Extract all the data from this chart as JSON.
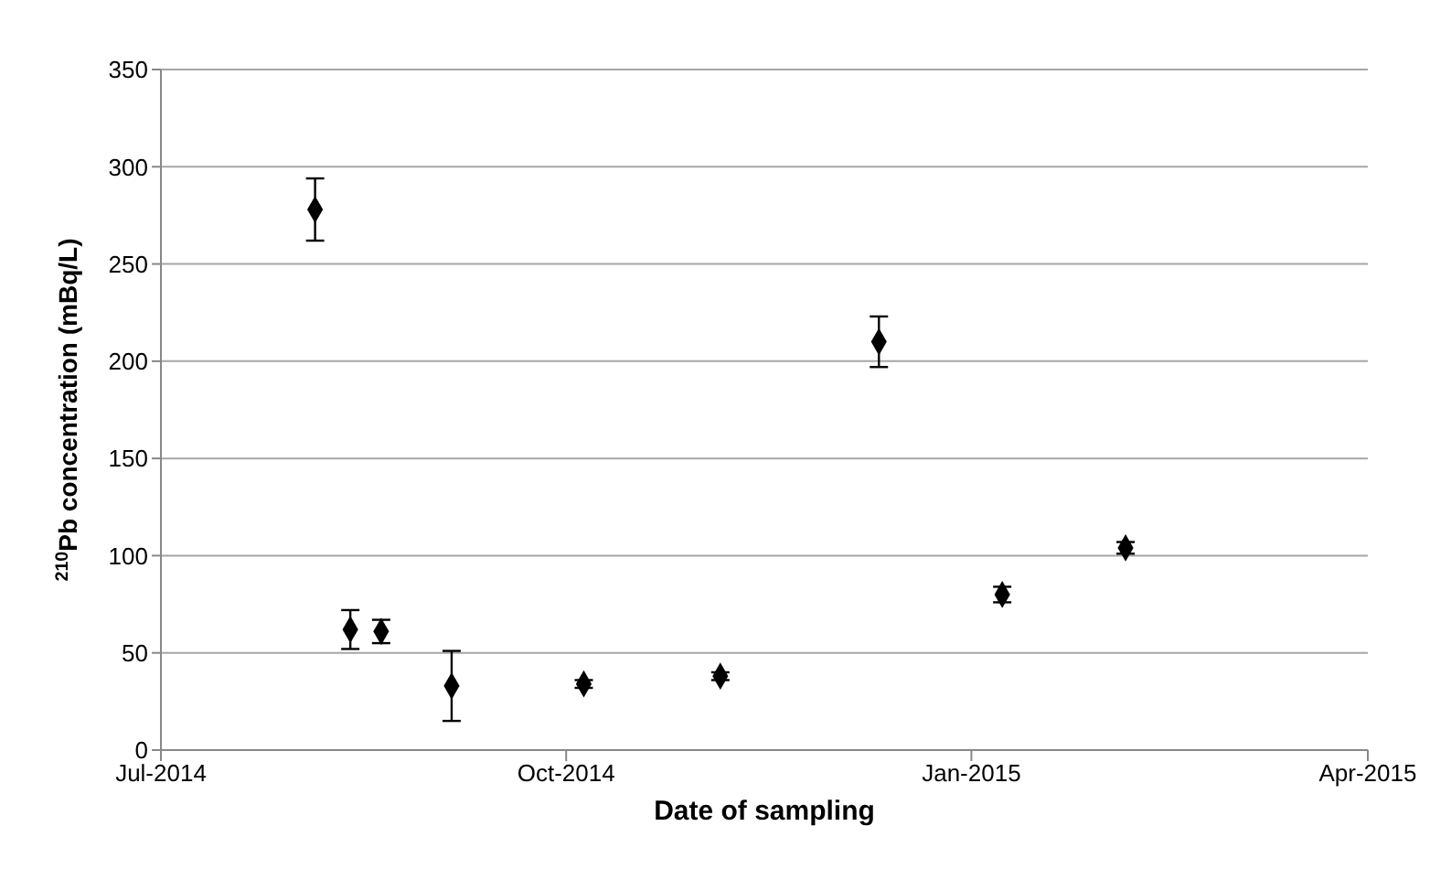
{
  "chart_data": {
    "type": "scatter",
    "xlabel": "Date of sampling",
    "ylabel": "$^{210}$Pb concentration (mBq/L)",
    "x": [
      "2014-08-05",
      "2014-08-13",
      "2014-08-20",
      "2014-09-05",
      "2014-10-05",
      "2014-11-05",
      "2014-12-11",
      "2015-01-08",
      "2015-02-05"
    ],
    "series": [
      {
        "color": "#000000",
        "values": [
          278,
          62,
          61,
          33,
          34,
          38,
          210,
          80,
          104
        ],
        "errors": [
          16,
          10,
          6,
          18,
          2,
          2,
          13,
          4,
          3
        ]
      }
    ],
    "xlim": [
      "2014-07-01",
      "2015-04-01"
    ],
    "xticks": [
      {
        "value": "2014-07-01",
        "label": "Jul-2014"
      },
      {
        "value": "2014-10-01",
        "label": "Oct-2014"
      },
      {
        "value": "2015-01-01",
        "label": "Jan-2015"
      },
      {
        "value": "2015-04-01",
        "label": "Apr-2015"
      }
    ],
    "ylim": [
      0,
      350
    ],
    "yticks": [
      0,
      50,
      100,
      150,
      200,
      250,
      300,
      350
    ],
    "grid": "y",
    "marker": "diamond",
    "legend": false
  }
}
